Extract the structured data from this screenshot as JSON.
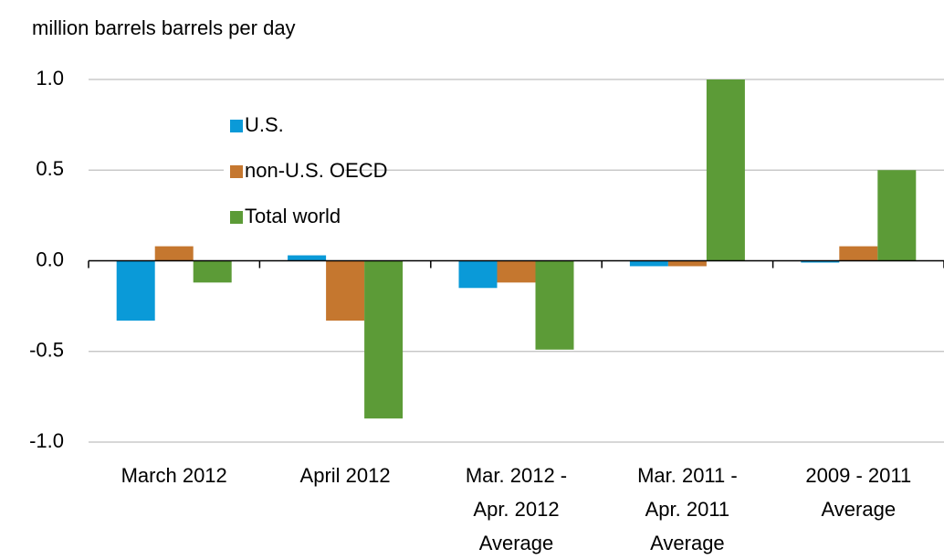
{
  "chart_data": {
    "type": "bar",
    "y_label": "million barrels barrels per day",
    "categories": [
      "March 2012",
      "April 2012",
      "Mar. 2012 -\nApr. 2012\nAverage",
      "Mar. 2011 -\nApr. 2011\nAverage",
      "2009 - 2011\nAverage"
    ],
    "series": [
      {
        "name": "U.S.",
        "color": "#0a9ad8",
        "values": [
          -0.33,
          0.03,
          -0.15,
          -0.03,
          -0.01
        ]
      },
      {
        "name": "non-U.S. OECD",
        "color": "#c5772f",
        "values": [
          0.08,
          -0.33,
          -0.12,
          -0.03,
          0.08
        ]
      },
      {
        "name": "Total world",
        "color": "#5c9b37",
        "values": [
          -0.12,
          -0.87,
          -0.49,
          1.0,
          0.5
        ]
      }
    ],
    "ylim": [
      -1.0,
      1.0
    ],
    "yticks": [
      {
        "value": -1,
        "label": "-1.0"
      },
      -0.5,
      {
        "value": 0,
        "label": "0.0"
      },
      0.5,
      {
        "value": 1,
        "label": "1.0"
      }
    ],
    "grid": true,
    "legend": "upper left"
  }
}
